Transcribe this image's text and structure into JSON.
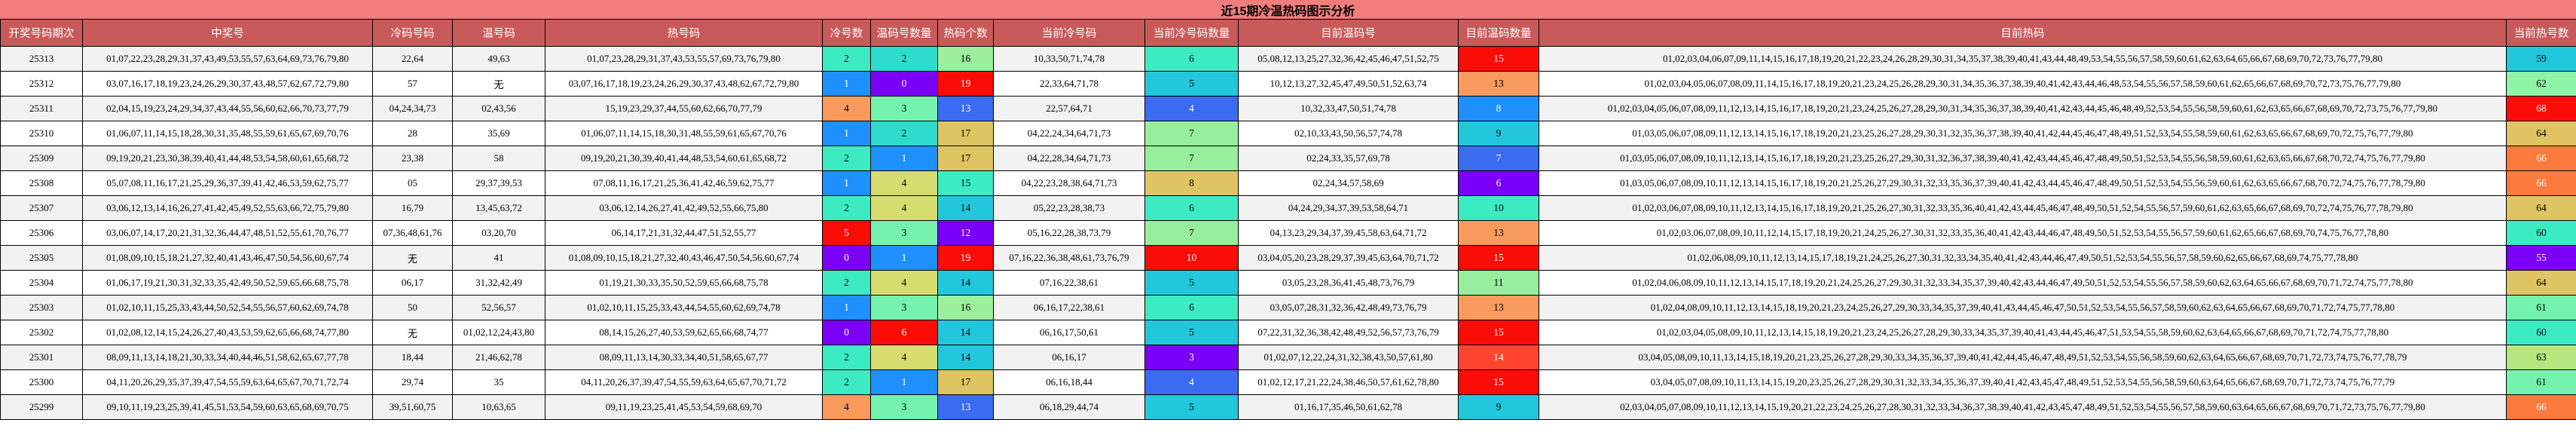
{
  "title": "近15期冷温热码图示分析",
  "colors": {
    "title_bg": "#F27D7D",
    "header_bg": "#C85A5A",
    "header_fg": "#FFFFFF",
    "row_odd": "#F2F2F2",
    "row_even": "#FFFFFF",
    "border": "#000000"
  },
  "table": {
    "columns": [
      {
        "key": "period",
        "label": "开奖号码期次"
      },
      {
        "key": "winning",
        "label": "中奖号"
      },
      {
        "key": "cold",
        "label": "冷码号码"
      },
      {
        "key": "warm",
        "label": "温号码"
      },
      {
        "key": "hot",
        "label": "热号码"
      },
      {
        "key": "cold_count",
        "label": "冷号数"
      },
      {
        "key": "warm_count",
        "label": "温码号数量"
      },
      {
        "key": "hot_count",
        "label": "热码个数"
      },
      {
        "key": "cur_cold",
        "label": "当前冷号码"
      },
      {
        "key": "cur_cold_count",
        "label": "当前冷号码数量"
      },
      {
        "key": "cur_warm",
        "label": "目前温码号"
      },
      {
        "key": "cur_warm_count",
        "label": "目前温码数量"
      },
      {
        "key": "cur_hot",
        "label": "目前热码"
      },
      {
        "key": "cur_hot_count",
        "label": "当前热号数"
      }
    ],
    "rows": [
      {
        "period": "25313",
        "winning": "01,07,22,23,28,29,31,37,43,49,53,55,57,63,64,69,73,76,79,80",
        "cold": "22,64",
        "warm": "49,63",
        "hot": "01,07,23,28,29,31,37,43,53,55,57,69,73,76,79,80",
        "cold_count": {
          "v": "2",
          "bg": "#3DEBC3"
        },
        "warm_count": {
          "v": "2",
          "bg": "#2EDCCD"
        },
        "hot_count": {
          "v": "16",
          "bg": "#9CEF9C"
        },
        "cur_cold": "10,33,50,71,74,78",
        "cur_cold_count": {
          "v": "6",
          "bg": "#3DEBC3"
        },
        "cur_warm": "05,08,12,13,25,27,32,36,42,45,46,47,51,52,75",
        "cur_warm_count": {
          "v": "15",
          "bg": "#FB0D07"
        },
        "cur_hot": "01,02,03,04,06,07,09,11,14,15,16,17,18,19,20,21,22,23,24,26,28,29,30,31,34,35,37,38,39,40,41,43,44,48,49,53,54,55,56,57,58,59,60,61,62,63,64,65,66,67,68,69,70,72,73,76,77,79,80",
        "cur_hot_count": {
          "v": "59",
          "bg": "#22C7DC"
        }
      },
      {
        "period": "25312",
        "winning": "03,07,16,17,18,19,23,24,26,29,30,37,43,48,57,62,67,72,79,80",
        "cold": "57",
        "warm": "无",
        "hot": "03,07,16,17,18,19,23,24,26,29,30,37,43,48,62,67,72,79,80",
        "cold_count": {
          "v": "1",
          "bg": "#1E90FF"
        },
        "warm_count": {
          "v": "0",
          "bg": "#7B00F7"
        },
        "hot_count": {
          "v": "19",
          "bg": "#FB0D07"
        },
        "cur_cold": "22,33,64,71,78",
        "cur_cold_count": {
          "v": "5",
          "bg": "#22C7DC"
        },
        "cur_warm": "10,12,13,27,32,45,47,49,50,51,52,63,74",
        "cur_warm_count": {
          "v": "13",
          "bg": "#F89B5C"
        },
        "cur_hot": "01,02,03,04,05,06,07,08,09,11,14,15,16,17,18,19,20,21,23,24,25,26,28,29,30,31,34,35,36,37,38,39,40,41,42,43,44,46,48,53,54,55,56,57,58,59,60,61,62,65,66,67,68,69,70,72,73,75,76,77,79,80",
        "cur_hot_count": {
          "v": "62",
          "bg": "#8FF5A6"
        }
      },
      {
        "period": "25311",
        "winning": "02,04,15,19,23,24,29,34,37,43,44,55,56,60,62,66,70,73,77,79",
        "cold": "04,24,34,73",
        "warm": "02,43,56",
        "hot": "15,19,23,29,37,44,55,60,62,66,70,77,79",
        "cold_count": {
          "v": "4",
          "bg": "#F89B5C"
        },
        "warm_count": {
          "v": "3",
          "bg": "#75F3AE"
        },
        "hot_count": {
          "v": "13",
          "bg": "#3A6BF0"
        },
        "cur_cold": "22,57,64,71",
        "cur_cold_count": {
          "v": "4",
          "bg": "#3A6BF0"
        },
        "cur_warm": "10,32,33,47,50,51,74,78",
        "cur_warm_count": {
          "v": "8",
          "bg": "#1E90FF"
        },
        "cur_hot": "01,02,03,04,05,06,07,08,09,11,12,13,14,15,16,17,18,19,20,21,23,24,25,26,27,28,29,30,31,34,35,36,37,38,39,40,41,42,43,44,45,46,48,49,52,53,54,55,56,58,59,60,61,62,63,65,66,67,68,69,70,72,73,75,76,77,79,80",
        "cur_hot_count": {
          "v": "68",
          "bg": "#FB0D07"
        }
      },
      {
        "period": "25310",
        "winning": "01,06,07,11,14,15,18,28,30,31,35,48,55,59,61,65,67,69,70,76",
        "cold": "28",
        "warm": "35,69",
        "hot": "01,06,07,11,14,15,18,30,31,48,55,59,61,65,67,70,76",
        "cold_count": {
          "v": "1",
          "bg": "#1E90FF"
        },
        "warm_count": {
          "v": "2",
          "bg": "#2EDCCD"
        },
        "hot_count": {
          "v": "17",
          "bg": "#DEC463"
        },
        "cur_cold": "04,22,24,34,64,71,73",
        "cur_cold_count": {
          "v": "7",
          "bg": "#97EF9D"
        },
        "cur_warm": "02,10,33,43,50,56,57,74,78",
        "cur_warm_count": {
          "v": "9",
          "bg": "#22C7DC"
        },
        "cur_hot": "01,03,05,06,07,08,09,11,12,13,14,15,16,17,18,19,20,21,23,25,26,27,28,29,30,31,32,35,36,37,38,39,40,41,42,44,45,46,47,48,49,51,52,53,54,55,58,59,60,61,62,63,65,66,67,68,69,70,72,75,76,77,79,80",
        "cur_hot_count": {
          "v": "64",
          "bg": "#DEC463"
        }
      },
      {
        "period": "25309",
        "winning": "09,19,20,21,23,30,38,39,40,41,44,48,53,54,58,60,61,65,68,72",
        "cold": "23,38",
        "warm": "58",
        "hot": "09,19,20,21,30,39,40,41,44,48,53,54,60,61,65,68,72",
        "cold_count": {
          "v": "2",
          "bg": "#3DEBC3"
        },
        "warm_count": {
          "v": "1",
          "bg": "#1E90FF"
        },
        "hot_count": {
          "v": "17",
          "bg": "#DEC463"
        },
        "cur_cold": "04,22,28,34,64,71,73",
        "cur_cold_count": {
          "v": "7",
          "bg": "#97EF9D"
        },
        "cur_warm": "02,24,33,35,57,69,78",
        "cur_warm_count": {
          "v": "7",
          "bg": "#3A6BF0"
        },
        "cur_hot": "01,03,05,06,07,08,09,10,11,12,13,14,15,16,17,18,19,20,21,23,25,26,27,29,30,31,32,36,37,38,39,40,41,42,43,44,45,46,47,48,49,50,51,52,53,54,55,56,58,59,60,61,62,63,65,66,67,68,70,72,74,75,76,77,79,80",
        "cur_hot_count": {
          "v": "66",
          "bg": "#FB7A3D"
        }
      },
      {
        "period": "25308",
        "winning": "05,07,08,11,16,17,21,25,29,36,37,39,41,42,46,53,59,62,75,77",
        "cold": "05",
        "warm": "29,37,39,53",
        "hot": "07,08,11,16,17,21,25,36,41,42,46,59,62,75,77",
        "cold_count": {
          "v": "1",
          "bg": "#1E90FF"
        },
        "warm_count": {
          "v": "4",
          "bg": "#D6DC6E"
        },
        "hot_count": {
          "v": "15",
          "bg": "#3DEBC3"
        },
        "cur_cold": "04,22,23,28,38,64,71,73",
        "cur_cold_count": {
          "v": "8",
          "bg": "#DEC463"
        },
        "cur_warm": "02,24,34,57,58,69",
        "cur_warm_count": {
          "v": "6",
          "bg": "#7B00F7"
        },
        "cur_hot": "01,03,05,06,07,08,09,10,11,12,13,14,15,16,17,18,19,20,21,25,26,27,29,30,31,32,33,35,36,37,39,40,41,42,43,44,45,46,47,48,49,50,51,52,53,54,55,56,59,60,61,62,63,65,66,67,68,70,72,74,75,76,77,78,79,80",
        "cur_hot_count": {
          "v": "66",
          "bg": "#FB7A3D"
        }
      },
      {
        "period": "25307",
        "winning": "03,06,12,13,14,16,26,27,41,42,45,49,52,55,63,66,72,75,79,80",
        "cold": "16,79",
        "warm": "13,45,63,72",
        "hot": "03,06,12,14,26,27,41,42,49,52,55,66,75,80",
        "cold_count": {
          "v": "2",
          "bg": "#3DEBC3"
        },
        "warm_count": {
          "v": "4",
          "bg": "#D6DC6E"
        },
        "hot_count": {
          "v": "14",
          "bg": "#22C7DC"
        },
        "cur_cold": "05,22,23,28,38,73",
        "cur_cold_count": {
          "v": "6",
          "bg": "#3DEBC3"
        },
        "cur_warm": "04,24,29,34,37,39,53,58,64,71",
        "cur_warm_count": {
          "v": "10",
          "bg": "#3DEBC3"
        },
        "cur_hot": "01,02,03,06,07,08,09,10,11,12,13,14,15,16,17,18,19,20,21,25,26,27,30,31,32,33,35,36,40,41,42,43,44,45,46,47,48,49,50,51,52,54,55,56,57,59,60,61,62,63,65,66,67,68,69,70,72,74,75,76,77,78,79,80",
        "cur_hot_count": {
          "v": "64",
          "bg": "#DEC463"
        }
      },
      {
        "period": "25306",
        "winning": "03,06,07,14,17,20,21,31,32,36,44,47,48,51,52,55,61,70,76,77",
        "cold": "07,36,48,61,76",
        "warm": "03,20,70",
        "hot": "06,14,17,21,31,32,44,47,51,52,55,77",
        "cold_count": {
          "v": "5",
          "bg": "#FB0D07"
        },
        "warm_count": {
          "v": "3",
          "bg": "#75F3AE"
        },
        "hot_count": {
          "v": "12",
          "bg": "#7B00F7"
        },
        "cur_cold": "05,16,22,28,38,73,79",
        "cur_cold_count": {
          "v": "7",
          "bg": "#97EF9D"
        },
        "cur_warm": "04,13,23,29,34,37,39,45,58,63,64,71,72",
        "cur_warm_count": {
          "v": "13",
          "bg": "#F89B5C"
        },
        "cur_hot": "01,02,03,06,07,08,09,10,11,12,14,15,17,18,19,20,21,24,25,26,27,30,31,32,33,35,36,40,41,42,43,44,46,47,48,49,50,51,52,53,54,55,56,57,59,60,61,62,65,66,67,68,69,70,74,75,76,77,78,80",
        "cur_hot_count": {
          "v": "60",
          "bg": "#3DEBC3"
        }
      },
      {
        "period": "25305",
        "winning": "01,08,09,10,15,18,21,27,32,40,41,43,46,47,50,54,56,60,67,74",
        "cold": "无",
        "warm": "41",
        "hot": "01,08,09,10,15,18,21,27,32,40,43,46,47,50,54,56,60,67,74",
        "cold_count": {
          "v": "0",
          "bg": "#7B00F7"
        },
        "warm_count": {
          "v": "1",
          "bg": "#1E90FF"
        },
        "hot_count": {
          "v": "19",
          "bg": "#FB0D07"
        },
        "cur_cold": "07,16,22,36,38,48,61,73,76,79",
        "cur_cold_count": {
          "v": "10",
          "bg": "#FB0D07"
        },
        "cur_warm": "03,04,05,20,23,28,29,37,39,45,63,64,70,71,72",
        "cur_warm_count": {
          "v": "15",
          "bg": "#FB0D07"
        },
        "cur_hot": "01,02,06,08,09,10,11,12,13,14,15,17,18,19,21,24,25,26,27,30,31,32,33,34,35,40,41,42,43,44,46,47,49,50,51,52,53,54,55,56,57,58,59,60,62,65,66,67,68,69,74,75,77,78,80",
        "cur_hot_count": {
          "v": "55",
          "bg": "#7B00F7"
        }
      },
      {
        "period": "25304",
        "winning": "01,06,17,19,21,30,31,32,33,35,42,49,50,52,59,65,66,68,75,78",
        "cold": "06,17",
        "warm": "31,32,42,49",
        "hot": "01,19,21,30,33,35,50,52,59,65,66,68,75,78",
        "cold_count": {
          "v": "2",
          "bg": "#3DEBC3"
        },
        "warm_count": {
          "v": "4",
          "bg": "#D6DC6E"
        },
        "hot_count": {
          "v": "14",
          "bg": "#22C7DC"
        },
        "cur_cold": "07,16,22,38,61",
        "cur_cold_count": {
          "v": "5",
          "bg": "#22C7DC"
        },
        "cur_warm": "03,05,23,28,36,41,45,48,73,76,79",
        "cur_warm_count": {
          "v": "11",
          "bg": "#97EF9D"
        },
        "cur_hot": "01,02,04,06,08,09,10,11,12,13,14,15,17,18,19,20,21,24,25,26,27,29,30,31,32,33,34,35,37,39,40,42,43,44,46,47,49,50,51,52,53,54,55,56,57,58,59,60,62,63,64,65,66,67,68,69,70,71,72,74,75,77,78,80",
        "cur_hot_count": {
          "v": "64",
          "bg": "#DEC463"
        }
      },
      {
        "period": "25303",
        "winning": "01,02,10,11,15,25,33,43,44,50,52,54,55,56,57,60,62,69,74,78",
        "cold": "50",
        "warm": "52,56,57",
        "hot": "01,02,10,11,15,25,33,43,44,54,55,60,62,69,74,78",
        "cold_count": {
          "v": "1",
          "bg": "#1E90FF"
        },
        "warm_count": {
          "v": "3",
          "bg": "#75F3AE"
        },
        "hot_count": {
          "v": "16",
          "bg": "#9CEF9C"
        },
        "cur_cold": "06,16,17,22,38,61",
        "cur_cold_count": {
          "v": "6",
          "bg": "#3DEBC3"
        },
        "cur_warm": "03,05,07,28,31,32,36,42,48,49,73,76,79",
        "cur_warm_count": {
          "v": "13",
          "bg": "#F89B5C"
        },
        "cur_hot": "01,02,04,08,09,10,11,12,13,14,15,18,19,20,21,23,24,25,26,27,29,30,33,34,35,37,39,40,41,43,44,45,46,47,50,51,52,53,54,55,56,57,58,59,60,62,63,64,65,66,67,68,69,70,71,72,74,75,77,78,80",
        "cur_hot_count": {
          "v": "61",
          "bg": "#75F3AE"
        }
      },
      {
        "period": "25302",
        "winning": "01,02,08,12,14,15,24,26,27,40,43,53,59,62,65,66,68,74,77,80",
        "cold": "无",
        "warm": "01,02,12,24,43,80",
        "hot": "08,14,15,26,27,40,53,59,62,65,66,68,74,77",
        "cold_count": {
          "v": "0",
          "bg": "#7B00F7"
        },
        "warm_count": {
          "v": "6",
          "bg": "#FB0D07"
        },
        "hot_count": {
          "v": "14",
          "bg": "#22C7DC"
        },
        "cur_cold": "06,16,17,50,61",
        "cur_cold_count": {
          "v": "5",
          "bg": "#22C7DC"
        },
        "cur_warm": "07,22,31,32,36,38,42,48,49,52,56,57,73,76,79",
        "cur_warm_count": {
          "v": "15",
          "bg": "#FB0D07"
        },
        "cur_hot": "01,02,03,04,05,08,09,10,11,12,13,14,15,18,19,20,21,23,24,25,26,27,28,29,30,33,34,35,37,39,40,41,43,44,45,46,47,51,53,54,55,58,59,60,62,63,64,65,66,67,68,69,70,71,72,74,75,77,78,80",
        "cur_hot_count": {
          "v": "60",
          "bg": "#3DEBC3"
        }
      },
      {
        "period": "25301",
        "winning": "08,09,11,13,14,18,21,30,33,34,40,44,46,51,58,62,65,67,77,78",
        "cold": "18,44",
        "warm": "21,46,62,78",
        "hot": "08,09,11,13,14,30,33,34,40,51,58,65,67,77",
        "cold_count": {
          "v": "2",
          "bg": "#3DEBC3"
        },
        "warm_count": {
          "v": "4",
          "bg": "#D6DC6E"
        },
        "hot_count": {
          "v": "14",
          "bg": "#22C7DC"
        },
        "cur_cold": "06,16,17",
        "cur_cold_count": {
          "v": "3",
          "bg": "#7B00F7"
        },
        "cur_warm": "01,02,07,12,22,24,31,32,38,43,50,57,61,80",
        "cur_warm_count": {
          "v": "14",
          "bg": "#FF4530"
        },
        "cur_hot": "03,04,05,08,09,10,11,13,14,15,18,19,20,21,23,25,26,27,28,29,30,33,34,35,36,37,39,40,41,42,44,45,46,47,48,49,51,52,53,54,55,56,58,59,60,62,63,64,65,66,67,68,69,70,71,72,73,74,75,76,77,78,79",
        "cur_hot_count": {
          "v": "63",
          "bg": "#B5E77E"
        }
      },
      {
        "period": "25300",
        "winning": "04,11,20,26,29,35,37,39,47,54,55,59,63,64,65,67,70,71,72,74",
        "cold": "29,74",
        "warm": "35",
        "hot": "04,11,20,26,37,39,47,54,55,59,63,64,65,67,70,71,72",
        "cold_count": {
          "v": "2",
          "bg": "#3DEBC3"
        },
        "warm_count": {
          "v": "1",
          "bg": "#1E90FF"
        },
        "hot_count": {
          "v": "17",
          "bg": "#DEC463"
        },
        "cur_cold": "06,16,18,44",
        "cur_cold_count": {
          "v": "4",
          "bg": "#3A6BF0"
        },
        "cur_warm": "01,02,12,17,21,22,24,38,46,50,57,61,62,78,80",
        "cur_warm_count": {
          "v": "15",
          "bg": "#FB0D07"
        },
        "cur_hot": "03,04,05,07,08,09,10,11,13,14,15,19,20,23,25,26,27,28,29,30,31,32,33,34,35,36,37,39,40,41,42,43,45,47,48,49,51,52,53,54,55,56,58,59,60,63,64,65,66,67,68,69,70,71,72,73,74,75,76,77,79",
        "cur_hot_count": {
          "v": "61",
          "bg": "#75F3AE"
        }
      },
      {
        "period": "25299",
        "winning": "09,10,11,19,23,25,39,41,45,51,53,54,59,60,63,65,68,69,70,75",
        "cold": "39,51,60,75",
        "warm": "10,63,65",
        "hot": "09,11,19,23,25,41,45,53,54,59,68,69,70",
        "cold_count": {
          "v": "4",
          "bg": "#F89B5C"
        },
        "warm_count": {
          "v": "3",
          "bg": "#75F3AE"
        },
        "hot_count": {
          "v": "13",
          "bg": "#3A6BF0"
        },
        "cur_cold": "06,18,29,44,74",
        "cur_cold_count": {
          "v": "5",
          "bg": "#22C7DC"
        },
        "cur_warm": "01,16,17,35,46,50,61,62,78",
        "cur_warm_count": {
          "v": "9",
          "bg": "#22C7DC"
        },
        "cur_hot": "02,03,04,05,07,08,09,10,11,12,13,14,15,19,20,21,22,23,24,25,26,27,28,30,31,32,33,34,36,37,38,39,40,41,42,43,45,47,48,49,51,52,53,54,55,56,57,58,59,60,63,64,65,66,67,68,69,70,71,72,73,75,76,77,79,80",
        "cur_hot_count": {
          "v": "66",
          "bg": "#FB7A3D"
        }
      }
    ]
  }
}
